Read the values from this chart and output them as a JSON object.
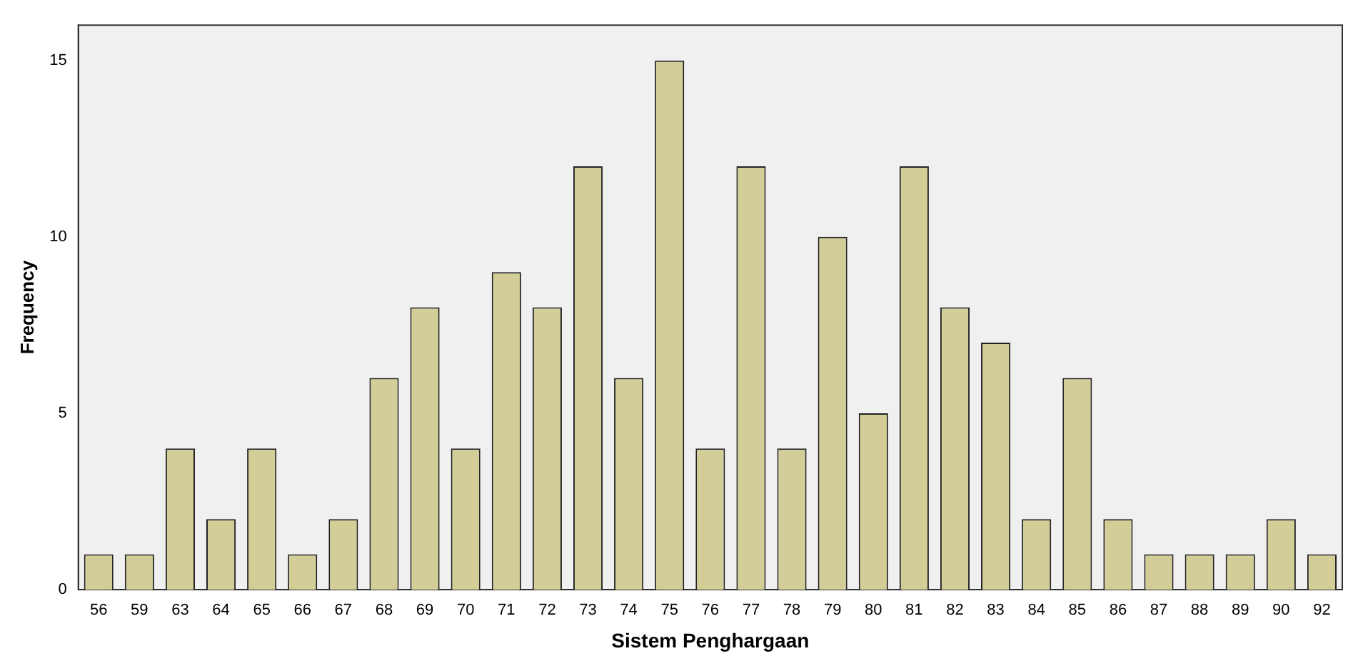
{
  "chart_data": {
    "type": "bar",
    "xlabel": "Sistem Penghargaan",
    "ylabel": "Frequency",
    "categories": [
      "56",
      "59",
      "63",
      "64",
      "65",
      "66",
      "67",
      "68",
      "69",
      "70",
      "71",
      "72",
      "73",
      "74",
      "75",
      "76",
      "77",
      "78",
      "79",
      "80",
      "81",
      "82",
      "83",
      "84",
      "85",
      "86",
      "87",
      "88",
      "89",
      "90",
      "92"
    ],
    "values": [
      1,
      1,
      4,
      2,
      4,
      1,
      2,
      6,
      8,
      4,
      9,
      8,
      12,
      6,
      15,
      4,
      12,
      4,
      10,
      5,
      12,
      8,
      7,
      2,
      6,
      2,
      1,
      1,
      1,
      2,
      1
    ],
    "color": "#d3ce97",
    "ylim": [
      0,
      16
    ],
    "yticks": [
      0,
      5,
      10,
      15
    ],
    "grid": false,
    "legend": false
  }
}
